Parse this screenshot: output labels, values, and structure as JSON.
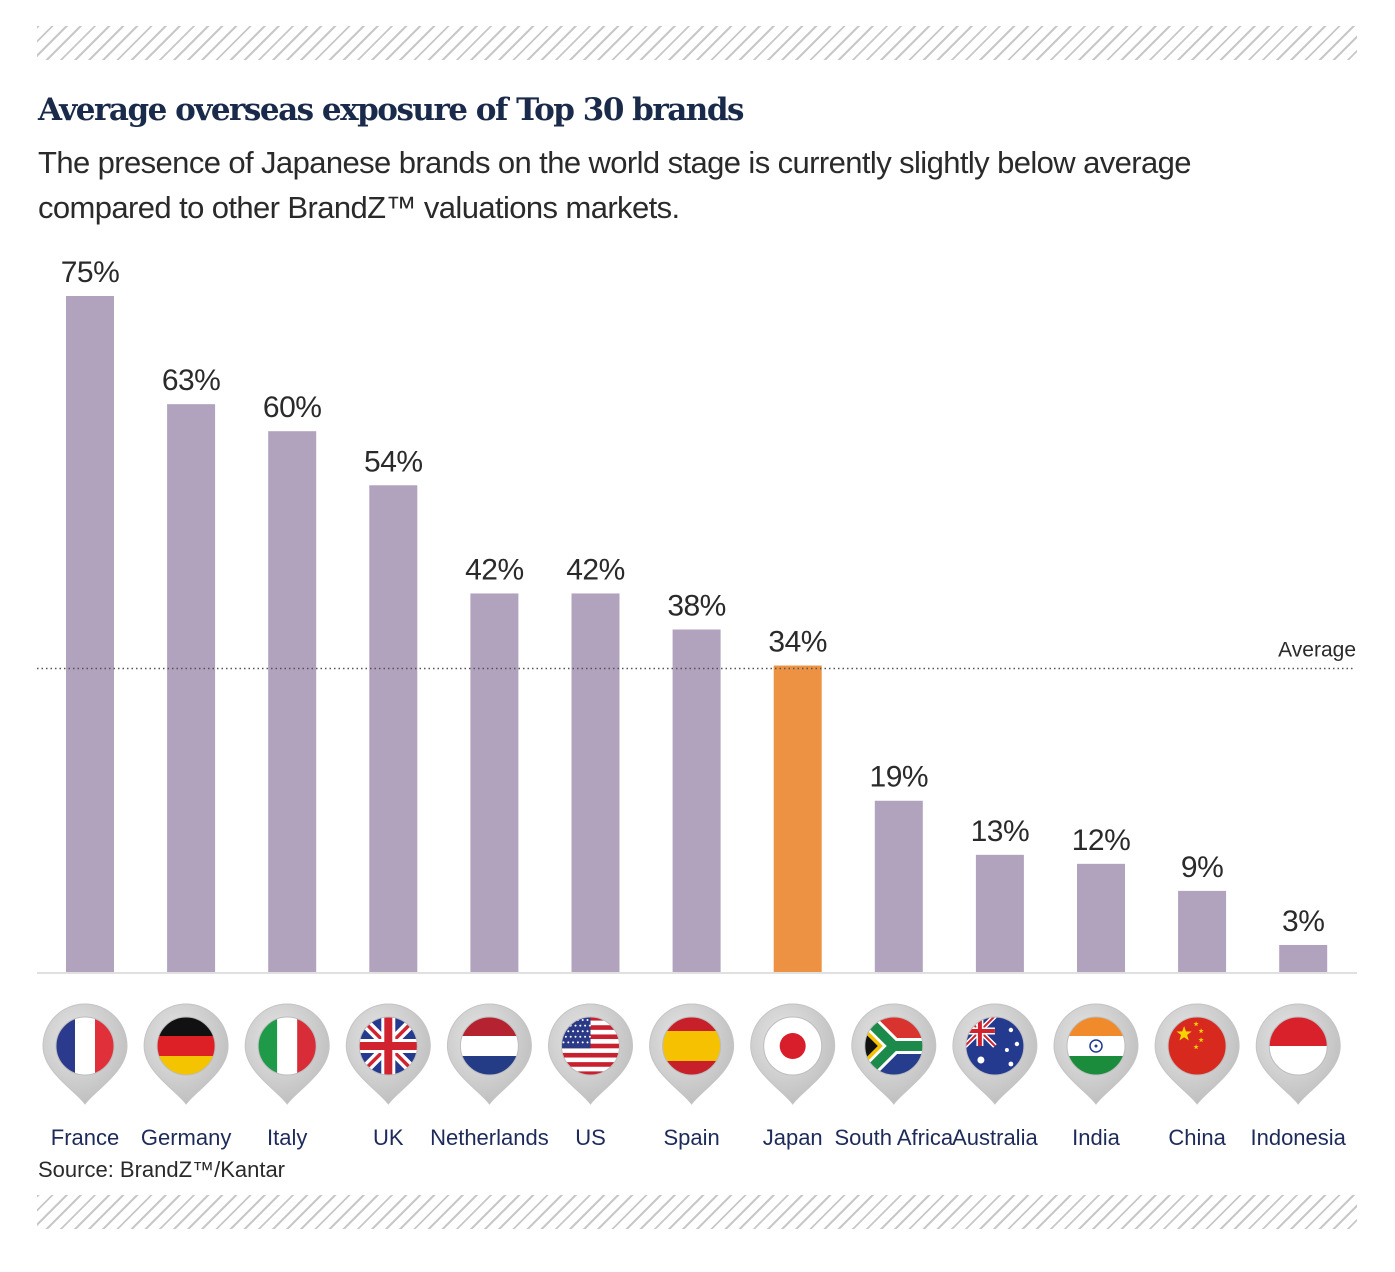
{
  "title": "Average overseas exposure of Top 30 brands",
  "subtitle": "The presence of Japanese brands on the world stage is currently slightly below average compared to other BrandZ™ valuations markets.",
  "source": "Source: BrandZ™/Kantar",
  "colors": {
    "bar": "#b1a3bd",
    "highlight": "#ec9242",
    "avg_line": "#555555",
    "axis": "#e0e0e0",
    "pin": "#cfcfcf"
  },
  "chart_data": {
    "type": "bar",
    "title": "Average overseas exposure of Top 30 brands",
    "xlabel": "",
    "ylabel": "",
    "ylim": [
      0,
      75
    ],
    "grid": false,
    "categories": [
      "France",
      "Germany",
      "Italy",
      "UK",
      "Netherlands",
      "US",
      "Spain",
      "Japan",
      "South Africa",
      "Australia",
      "India",
      "China",
      "Indonesia"
    ],
    "values": [
      75,
      63,
      60,
      54,
      42,
      42,
      38,
      34,
      19,
      13,
      12,
      9,
      3
    ],
    "value_labels": [
      "75%",
      "63%",
      "60%",
      "54%",
      "42%",
      "42%",
      "38%",
      "34%",
      "19%",
      "13%",
      "12%",
      "9%",
      "3%"
    ],
    "highlight": "Japan",
    "average": {
      "label": "Average",
      "value": 35
    },
    "flags": [
      "france-flag-icon",
      "germany-flag-icon",
      "italy-flag-icon",
      "uk-flag-icon",
      "netherlands-flag-icon",
      "us-flag-icon",
      "spain-flag-icon",
      "japan-flag-icon",
      "south-africa-flag-icon",
      "australia-flag-icon",
      "india-flag-icon",
      "china-flag-icon",
      "indonesia-flag-icon"
    ]
  }
}
